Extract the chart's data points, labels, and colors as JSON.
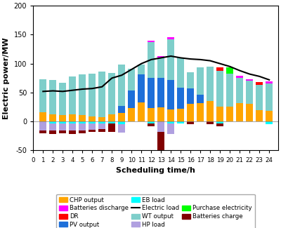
{
  "hours": [
    1,
    2,
    3,
    4,
    5,
    6,
    7,
    8,
    9,
    10,
    11,
    12,
    13,
    14,
    15,
    16,
    17,
    18,
    19,
    20,
    21,
    22,
    23,
    24
  ],
  "CHP_output": [
    16,
    12,
    11,
    13,
    11,
    9,
    8,
    12,
    15,
    23,
    33,
    23,
    25,
    21,
    22,
    31,
    32,
    35,
    26,
    26,
    32,
    30,
    20,
    19
  ],
  "PV_output": [
    0,
    0,
    0,
    0,
    0,
    0,
    0,
    0,
    12,
    30,
    48,
    52,
    50,
    51,
    36,
    26,
    14,
    0,
    0,
    0,
    0,
    0,
    0,
    0
  ],
  "WT_output": [
    57,
    60,
    56,
    65,
    70,
    74,
    78,
    72,
    72,
    38,
    18,
    62,
    34,
    70,
    52,
    28,
    48,
    60,
    62,
    57,
    44,
    40,
    43,
    47
  ],
  "Purchase_elec": [
    0,
    0,
    0,
    0,
    0,
    0,
    0,
    0,
    0,
    0,
    0,
    0,
    0,
    0,
    0,
    0,
    0,
    0,
    0,
    10,
    0,
    0,
    0,
    0
  ],
  "Batteries_discharge": [
    0,
    0,
    0,
    0,
    0,
    0,
    0,
    0,
    0,
    0,
    0,
    3,
    4,
    4,
    0,
    0,
    0,
    0,
    0,
    0,
    3,
    3,
    0,
    3
  ],
  "DR": [
    0,
    0,
    0,
    0,
    0,
    0,
    0,
    0,
    0,
    0,
    0,
    0,
    0,
    0,
    0,
    0,
    0,
    0,
    5,
    0,
    0,
    0,
    5,
    0
  ],
  "EB_load": [
    0,
    -3,
    -3,
    -3,
    -3,
    -3,
    -3,
    -3,
    -4,
    0,
    0,
    -3,
    0,
    -3,
    -3,
    0,
    0,
    0,
    -3,
    0,
    0,
    0,
    0,
    -5
  ],
  "HP_load": [
    -15,
    -13,
    -13,
    -13,
    -13,
    -11,
    -10,
    0,
    -15,
    0,
    0,
    0,
    -18,
    -18,
    0,
    0,
    0,
    0,
    0,
    0,
    0,
    0,
    0,
    0
  ],
  "Batteries_charge": [
    -5,
    -5,
    -4,
    -5,
    -4,
    -4,
    -5,
    -15,
    0,
    0,
    0,
    -5,
    -40,
    0,
    0,
    -5,
    0,
    -5,
    -5,
    0,
    0,
    0,
    0,
    0
  ],
  "electric_load": [
    52,
    53,
    52,
    54,
    56,
    57,
    60,
    75,
    80,
    90,
    100,
    107,
    110,
    113,
    110,
    108,
    107,
    105,
    100,
    95,
    88,
    82,
    78,
    72
  ],
  "colors": {
    "CHP_output": "#FFA500",
    "PV_output": "#1E6FD9",
    "WT_output": "#7ECECA",
    "Purchase_elec": "#00FF00",
    "Batteries_discharge": "#FF00FF",
    "DR": "#FF0000",
    "EB_load": "#00FFFF",
    "HP_load": "#B0A0E0",
    "Batteries_charge": "#800000"
  },
  "ylim": [
    -50,
    200
  ],
  "xlabel": "Scheduling time/h",
  "ylabel": "Electric power/MW"
}
